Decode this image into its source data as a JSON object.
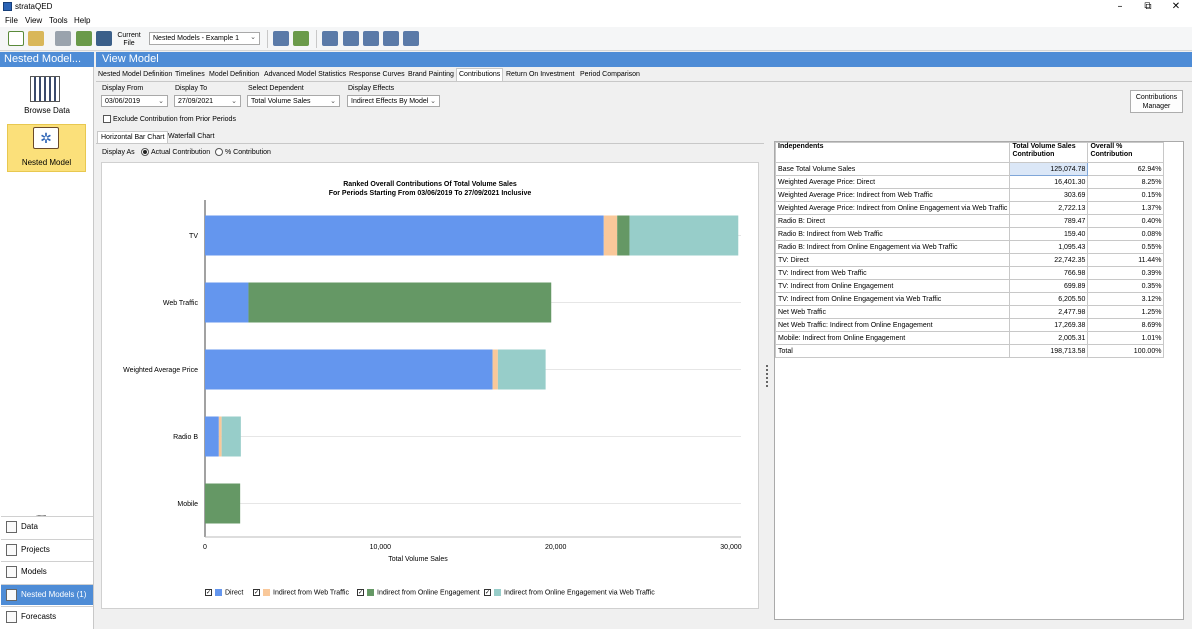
{
  "window": {
    "title": "strataQED",
    "minimize": "–",
    "restore": "⧉",
    "close": "✕"
  },
  "menu": [
    "File",
    "View",
    "Tools",
    "Help"
  ],
  "toolbar": {
    "current_file_label": "Current File",
    "file_value": "Nested Models - Example 1"
  },
  "left_header": "Nested Model...",
  "main_header": "View Model",
  "sidebar": {
    "browse_label": "Browse Data",
    "nested_label": "Nested Model",
    "grip": "........",
    "nav": [
      "Data",
      "Projects",
      "Models",
      "Nested Models (1)",
      "Forecasts"
    ]
  },
  "tabs": [
    "Nested Model Definition",
    "Timelines",
    "Model Definition",
    "Advanced Model Statistics",
    "Response Curves",
    "Brand Painting",
    "Contributions",
    "Return On Investment",
    "Period Comparison"
  ],
  "active_tab": "Contributions",
  "controls": {
    "display_from_label": "Display From",
    "display_from_value": "03/06/2019",
    "display_to_label": "Display To",
    "display_to_value": "27/09/2021",
    "dependent_label": "Select Dependent",
    "dependent_value": "Total Volume Sales",
    "effects_label": "Display Effects",
    "effects_value": "Indirect Effects By Model",
    "exclude_label": "Exclude Contribution from Prior Periods",
    "manager_button": "Contributions Manager"
  },
  "subtabs": [
    "Horizontal Bar Chart",
    "Waterfall Chart"
  ],
  "display_as": {
    "label": "Display As",
    "actual": "Actual Contribution",
    "percent": "% Contribution"
  },
  "chart_data": {
    "type": "bar",
    "orientation": "horizontal",
    "stacked": true,
    "title": "Ranked Overall Contributions Of Total Volume Sales",
    "subtitle": "For Periods Starting From 03/06/2019 To 27/09/2021 Inclusive",
    "xlabel": "Total Volume Sales",
    "ylabel": "",
    "xlim": [
      0,
      30000
    ],
    "xticks": [
      "0",
      "10,000",
      "20,000",
      "30,000"
    ],
    "categories": [
      "TV",
      "Web Traffic",
      "Weighted Average Price",
      "Radio B",
      "Mobile"
    ],
    "series": [
      {
        "name": "Direct",
        "color": "#6496ee",
        "values": [
          22742.35,
          2477.98,
          16401.3,
          789.47,
          0
        ]
      },
      {
        "name": "Indirect from Web Traffic",
        "color": "#f9c89a",
        "values": [
          766.98,
          0,
          303.69,
          159.4,
          0
        ]
      },
      {
        "name": "Indirect from Online Engagement",
        "color": "#659865",
        "values": [
          699.89,
          17269.38,
          0,
          0,
          2005.31
        ]
      },
      {
        "name": "Indirect from Online Engagement via Web Traffic",
        "color": "#97cdc9",
        "values": [
          6205.5,
          0,
          2722.13,
          1095.43,
          0
        ]
      }
    ],
    "grid": true,
    "legend": "bottom"
  },
  "table": {
    "headers": [
      "Independents",
      "Total Volume Sales Contribution",
      "Overall % Contribution"
    ],
    "rows": [
      [
        "Base Total Volume Sales",
        "125,074.78",
        "62.94%"
      ],
      [
        "Weighted Average Price: Direct",
        "16,401.30",
        "8.25%"
      ],
      [
        "Weighted Average Price: Indirect from Web Traffic",
        "303.69",
        "0.15%"
      ],
      [
        "Weighted Average Price: Indirect from Online Engagement via Web Traffic",
        "2,722.13",
        "1.37%"
      ],
      [
        "Radio B: Direct",
        "789.47",
        "0.40%"
      ],
      [
        "Radio B: Indirect from Web Traffic",
        "159.40",
        "0.08%"
      ],
      [
        "Radio B: Indirect from Online Engagement via Web Traffic",
        "1,095.43",
        "0.55%"
      ],
      [
        "TV: Direct",
        "22,742.35",
        "11.44%"
      ],
      [
        "TV: Indirect from Web Traffic",
        "766.98",
        "0.39%"
      ],
      [
        "TV: Indirect from Online Engagement",
        "699.89",
        "0.35%"
      ],
      [
        "TV: Indirect from Online Engagement via Web Traffic",
        "6,205.50",
        "3.12%"
      ],
      [
        "Net Web Traffic",
        "2,477.98",
        "1.25%"
      ],
      [
        "Net Web Traffic: Indirect from Online Engagement",
        "17,269.38",
        "8.69%"
      ],
      [
        "Mobile: Indirect from Online Engagement",
        "2,005.31",
        "1.01%"
      ],
      [
        "Total",
        "198,713.58",
        "100.00%"
      ]
    ]
  }
}
